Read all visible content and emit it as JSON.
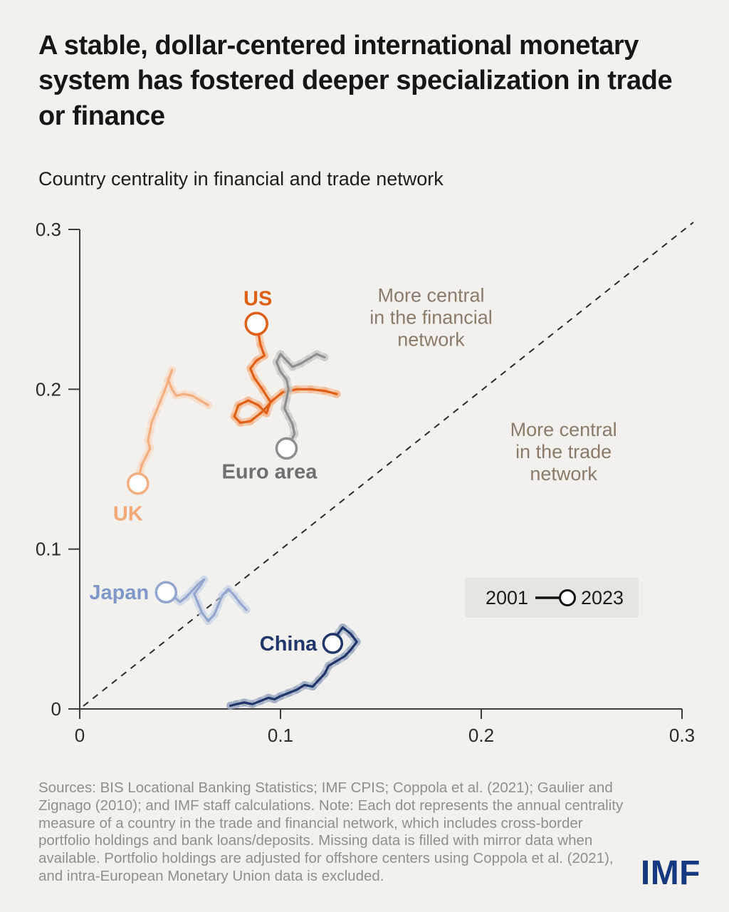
{
  "header": {
    "title": "A stable, dollar-centered international monetary system has fostered deeper specialization in trade or finance",
    "subtitle": "Country centrality in financial and trade network"
  },
  "chart_data": {
    "type": "scatter",
    "title": "Country centrality in financial and trade network",
    "xlabel": "",
    "ylabel": "",
    "xlim": [
      0,
      0.3
    ],
    "ylim": [
      0,
      0.3
    ],
    "xticks": [
      0,
      0.1,
      0.2,
      0.3
    ],
    "yticks": [
      0,
      0.1,
      0.2,
      0.3
    ],
    "xtick_labels": [
      "0",
      "0.1",
      "0.2",
      "0.3"
    ],
    "ytick_labels": [
      "0",
      "0.1",
      "0.2",
      "0.3"
    ],
    "diagonal_line": {
      "style": "dashed",
      "from": [
        0,
        0
      ],
      "to": [
        0.3,
        0.3
      ]
    },
    "annotations": [
      {
        "lines": [
          "More central",
          "in the financial",
          "network"
        ],
        "x": 0.175,
        "y": 0.245,
        "color": "#8b7b6b"
      },
      {
        "lines": [
          "More central",
          "in the trade",
          "network"
        ],
        "x": 0.241,
        "y": 0.161,
        "color": "#8b7b6b"
      }
    ],
    "legend": {
      "start_label": "2001",
      "end_label": "2023"
    },
    "series": [
      {
        "name": "US",
        "color": "#de5f16",
        "halo": "#f5b183",
        "label_color": "#de5f16",
        "label_dx": 2,
        "label_dy": -26,
        "label_anchor": "middle",
        "marker_r": 15,
        "points": [
          [
            0.128,
            0.197
          ],
          [
            0.122,
            0.199
          ],
          [
            0.115,
            0.2
          ],
          [
            0.108,
            0.2
          ],
          [
            0.101,
            0.198
          ],
          [
            0.096,
            0.193
          ],
          [
            0.091,
            0.186
          ],
          [
            0.085,
            0.18
          ],
          [
            0.08,
            0.179
          ],
          [
            0.077,
            0.183
          ],
          [
            0.079,
            0.19
          ],
          [
            0.084,
            0.193
          ],
          [
            0.089,
            0.19
          ],
          [
            0.093,
            0.185
          ],
          [
            0.095,
            0.192
          ],
          [
            0.091,
            0.2
          ],
          [
            0.087,
            0.207
          ],
          [
            0.085,
            0.213
          ],
          [
            0.088,
            0.218
          ],
          [
            0.092,
            0.221
          ],
          [
            0.09,
            0.228
          ],
          [
            0.089,
            0.235
          ],
          [
            0.088,
            0.241
          ]
        ]
      },
      {
        "name": "UK",
        "color": "#f3ae80",
        "halo": "#fad9c2",
        "label_color": "#f3a878",
        "label_dx": -14,
        "label_dy": 52,
        "label_anchor": "middle",
        "marker_r": 14,
        "points": [
          [
            0.064,
            0.19
          ],
          [
            0.06,
            0.193
          ],
          [
            0.056,
            0.196
          ],
          [
            0.052,
            0.197
          ],
          [
            0.048,
            0.196
          ],
          [
            0.046,
            0.2
          ],
          [
            0.044,
            0.206
          ],
          [
            0.046,
            0.212
          ],
          [
            0.044,
            0.205
          ],
          [
            0.042,
            0.198
          ],
          [
            0.04,
            0.192
          ],
          [
            0.038,
            0.186
          ],
          [
            0.036,
            0.18
          ],
          [
            0.035,
            0.174
          ],
          [
            0.034,
            0.168
          ],
          [
            0.035,
            0.163
          ],
          [
            0.033,
            0.158
          ],
          [
            0.031,
            0.153
          ],
          [
            0.03,
            0.148
          ],
          [
            0.029,
            0.144
          ],
          [
            0.029,
            0.141
          ]
        ]
      },
      {
        "name": "Euro area",
        "color": "#8e8e8e",
        "halo": "#c6c5c3",
        "label_color": "#6f6f6f",
        "label_dx": -24,
        "label_dy": 42,
        "label_anchor": "middle",
        "marker_r": 14,
        "points": [
          [
            0.122,
            0.22
          ],
          [
            0.118,
            0.222
          ],
          [
            0.114,
            0.219
          ],
          [
            0.11,
            0.216
          ],
          [
            0.106,
            0.214
          ],
          [
            0.103,
            0.218
          ],
          [
            0.1,
            0.222
          ],
          [
            0.098,
            0.217
          ],
          [
            0.1,
            0.211
          ],
          [
            0.103,
            0.206
          ],
          [
            0.104,
            0.2
          ],
          [
            0.103,
            0.194
          ],
          [
            0.102,
            0.188
          ],
          [
            0.104,
            0.183
          ],
          [
            0.106,
            0.178
          ],
          [
            0.107,
            0.172
          ],
          [
            0.105,
            0.167
          ],
          [
            0.103,
            0.163
          ]
        ]
      },
      {
        "name": "Japan",
        "color": "#93a6ce",
        "halo": "#c9d2e6",
        "label_color": "#7e97c8",
        "label_dx": -24,
        "label_dy": 10,
        "label_anchor": "end",
        "marker_r": 14,
        "points": [
          [
            0.083,
            0.062
          ],
          [
            0.08,
            0.066
          ],
          [
            0.077,
            0.071
          ],
          [
            0.074,
            0.075
          ],
          [
            0.071,
            0.071
          ],
          [
            0.069,
            0.065
          ],
          [
            0.067,
            0.059
          ],
          [
            0.064,
            0.055
          ],
          [
            0.061,
            0.06
          ],
          [
            0.059,
            0.066
          ],
          [
            0.057,
            0.072
          ],
          [
            0.06,
            0.077
          ],
          [
            0.062,
            0.081
          ],
          [
            0.059,
            0.078
          ],
          [
            0.056,
            0.074
          ],
          [
            0.053,
            0.07
          ],
          [
            0.05,
            0.067
          ],
          [
            0.047,
            0.07
          ],
          [
            0.044,
            0.072
          ],
          [
            0.043,
            0.073
          ]
        ]
      },
      {
        "name": "China",
        "color": "#20366b",
        "halo": "#93a0be",
        "label_color": "#20366b",
        "label_dx": -22,
        "label_dy": 10,
        "label_anchor": "end",
        "marker_r": 13,
        "points": [
          [
            0.075,
            0.002
          ],
          [
            0.078,
            0.003
          ],
          [
            0.082,
            0.004
          ],
          [
            0.086,
            0.003
          ],
          [
            0.09,
            0.005
          ],
          [
            0.094,
            0.007
          ],
          [
            0.097,
            0.006
          ],
          [
            0.1,
            0.008
          ],
          [
            0.104,
            0.01
          ],
          [
            0.108,
            0.012
          ],
          [
            0.112,
            0.015
          ],
          [
            0.116,
            0.014
          ],
          [
            0.119,
            0.018
          ],
          [
            0.122,
            0.022
          ],
          [
            0.124,
            0.027
          ],
          [
            0.128,
            0.03
          ],
          [
            0.132,
            0.033
          ],
          [
            0.135,
            0.037
          ],
          [
            0.138,
            0.042
          ],
          [
            0.135,
            0.047
          ],
          [
            0.131,
            0.051
          ],
          [
            0.128,
            0.046
          ],
          [
            0.126,
            0.041
          ]
        ]
      }
    ]
  },
  "source": {
    "text": "Sources: BIS Locational Banking Statistics; IMF CPIS; Coppola et al. (2021); Gaulier and Zignago (2010); and IMF staff calculations. Note: Each dot represents the annual centrality measure of a country in the trade and financial network, which includes cross-border portfolio holdings and bank loans/deposits. Missing data is filled with mirror data when available. Portfolio holdings are adjusted for offshore centers using Coppola et al. (2021), and intra-European Monetary Union data is excluded."
  },
  "logo": {
    "text": "IMF"
  }
}
